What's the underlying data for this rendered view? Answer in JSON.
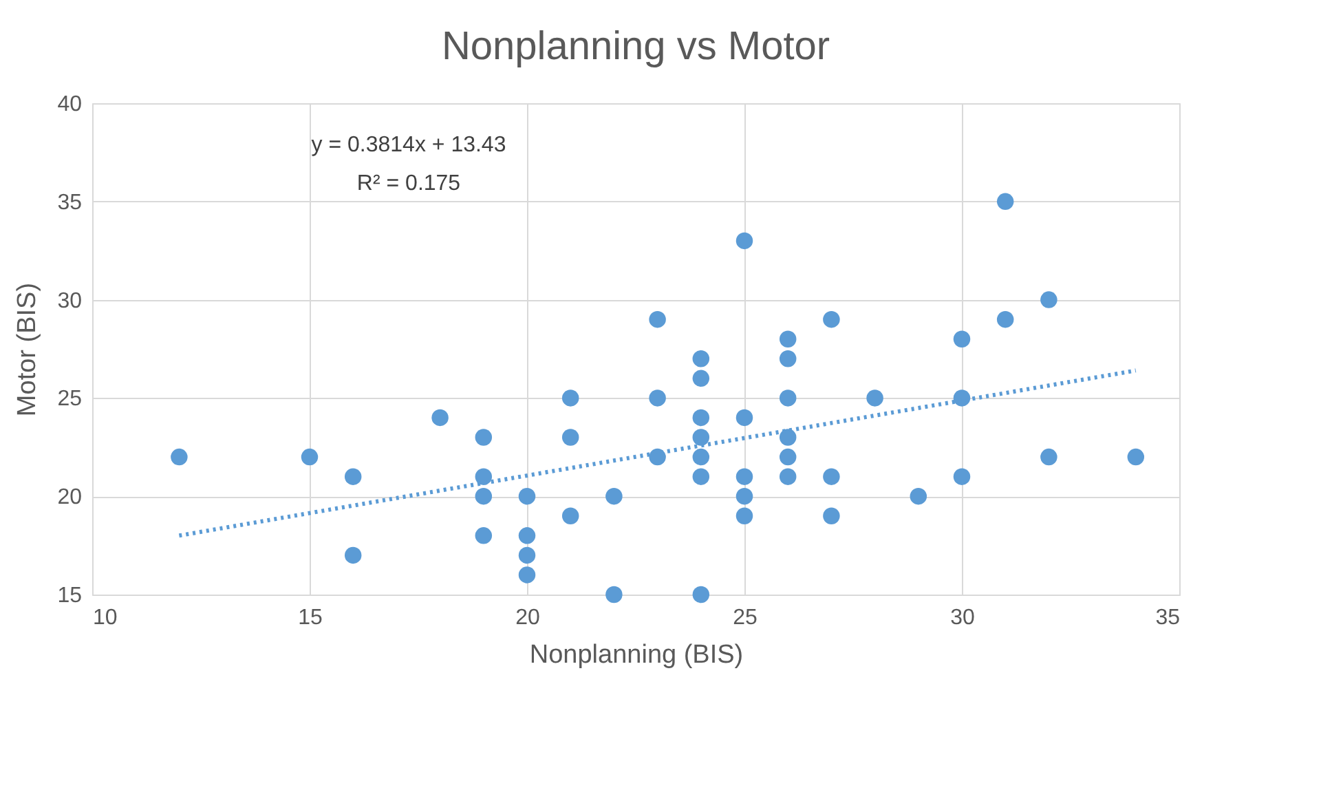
{
  "chart_data": {
    "type": "scatter",
    "title": "Nonplanning vs Motor",
    "xlabel": "Nonplanning (BIS)",
    "ylabel": "Motor (BIS)",
    "xlim": [
      10,
      35
    ],
    "xticks": [
      10,
      15,
      20,
      25,
      30,
      35
    ],
    "ylim": [
      15,
      40
    ],
    "yticks": [
      15,
      20,
      25,
      30,
      35,
      40
    ],
    "grid": true,
    "annotations": [
      "y = 0.3814x + 13.43",
      "R² = 0.175"
    ],
    "series": [
      {
        "color": "#5b9bd5",
        "marker": "circle",
        "x": [
          12,
          15,
          16,
          16,
          18,
          19,
          19,
          19,
          19,
          20,
          20,
          20,
          20,
          21,
          21,
          21,
          22,
          22,
          23,
          23,
          23,
          24,
          24,
          24,
          24,
          24,
          24,
          24,
          25,
          25,
          25,
          25,
          25,
          26,
          26,
          26,
          26,
          26,
          26,
          27,
          27,
          27,
          28,
          29,
          30,
          30,
          30,
          31,
          31,
          32,
          32,
          34
        ],
        "values": [
          22,
          22,
          21,
          17,
          24,
          23,
          21,
          20,
          18,
          20,
          18,
          17,
          16,
          25,
          23,
          19,
          20,
          15,
          29,
          25,
          22,
          27,
          26,
          24,
          23,
          22,
          21,
          15,
          33,
          24,
          21,
          20,
          19,
          28,
          27,
          25,
          23,
          22,
          21,
          29,
          21,
          19,
          25,
          20,
          28,
          25,
          21,
          35,
          29,
          30,
          22,
          22
        ]
      },
      {
        "type": "line",
        "color": "#5b9bd5",
        "line_style": "dotted",
        "x": [
          12,
          34
        ],
        "marker": "none",
        "values": [
          18.0,
          26.4
        ]
      }
    ]
  }
}
